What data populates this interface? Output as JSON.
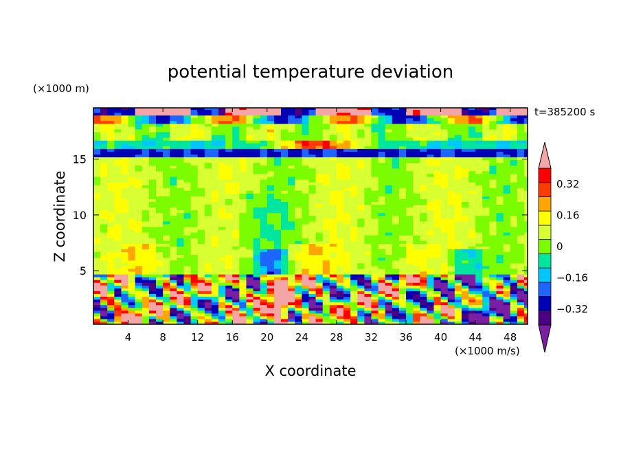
{
  "chart_data": {
    "type": "heatmap",
    "title": "potential temperature deviation",
    "xlabel": "X coordinate",
    "ylabel": "Z coordinate",
    "x_unit": "(×1000 m/s)",
    "y_unit": "(×1000 m)",
    "time_label": "t=385200 s",
    "xlim": [
      0,
      50
    ],
    "ylim": [
      0.2,
      19.6
    ],
    "x_ticks": [
      4,
      8,
      12,
      16,
      20,
      24,
      28,
      32,
      36,
      40,
      44,
      48
    ],
    "y_ticks": [
      5,
      10,
      15
    ],
    "colorbar": {
      "levels": [
        -0.48,
        -0.4,
        -0.32,
        -0.24,
        -0.16,
        -0.08,
        0,
        0.08,
        0.16,
        0.24,
        0.32,
        0.4
      ],
      "labels": [
        "0.32",
        "0.16",
        "0",
        "−0.16",
        "−0.32"
      ],
      "label_values": [
        0.32,
        0.16,
        0,
        -0.16,
        -0.32
      ],
      "colors": [
        "#7a1fa2",
        "#4b0082",
        "#0000b4",
        "#1e64ff",
        "#00c8ff",
        "#00e6a0",
        "#7cfc00",
        "#d7ff32",
        "#ffff00",
        "#ffa500",
        "#ff3c00",
        "#ff0000",
        "#f4a6a6"
      ],
      "extend": "both"
    },
    "bands": [
      {
        "z": [
          0.2,
          4.8
        ],
        "description": "lower layer: strong mixed positive and negative anomalies"
      },
      {
        "z": [
          4.8,
          15.1
        ],
        "value_range": [
          -0.16,
          0.16
        ]
      },
      {
        "z": [
          15.1,
          16.0
        ],
        "value_range": [
          -0.4,
          -0.24
        ]
      },
      {
        "z": [
          16.0,
          19.6
        ],
        "value_range": [
          -0.32,
          0.4
        ]
      }
    ]
  }
}
